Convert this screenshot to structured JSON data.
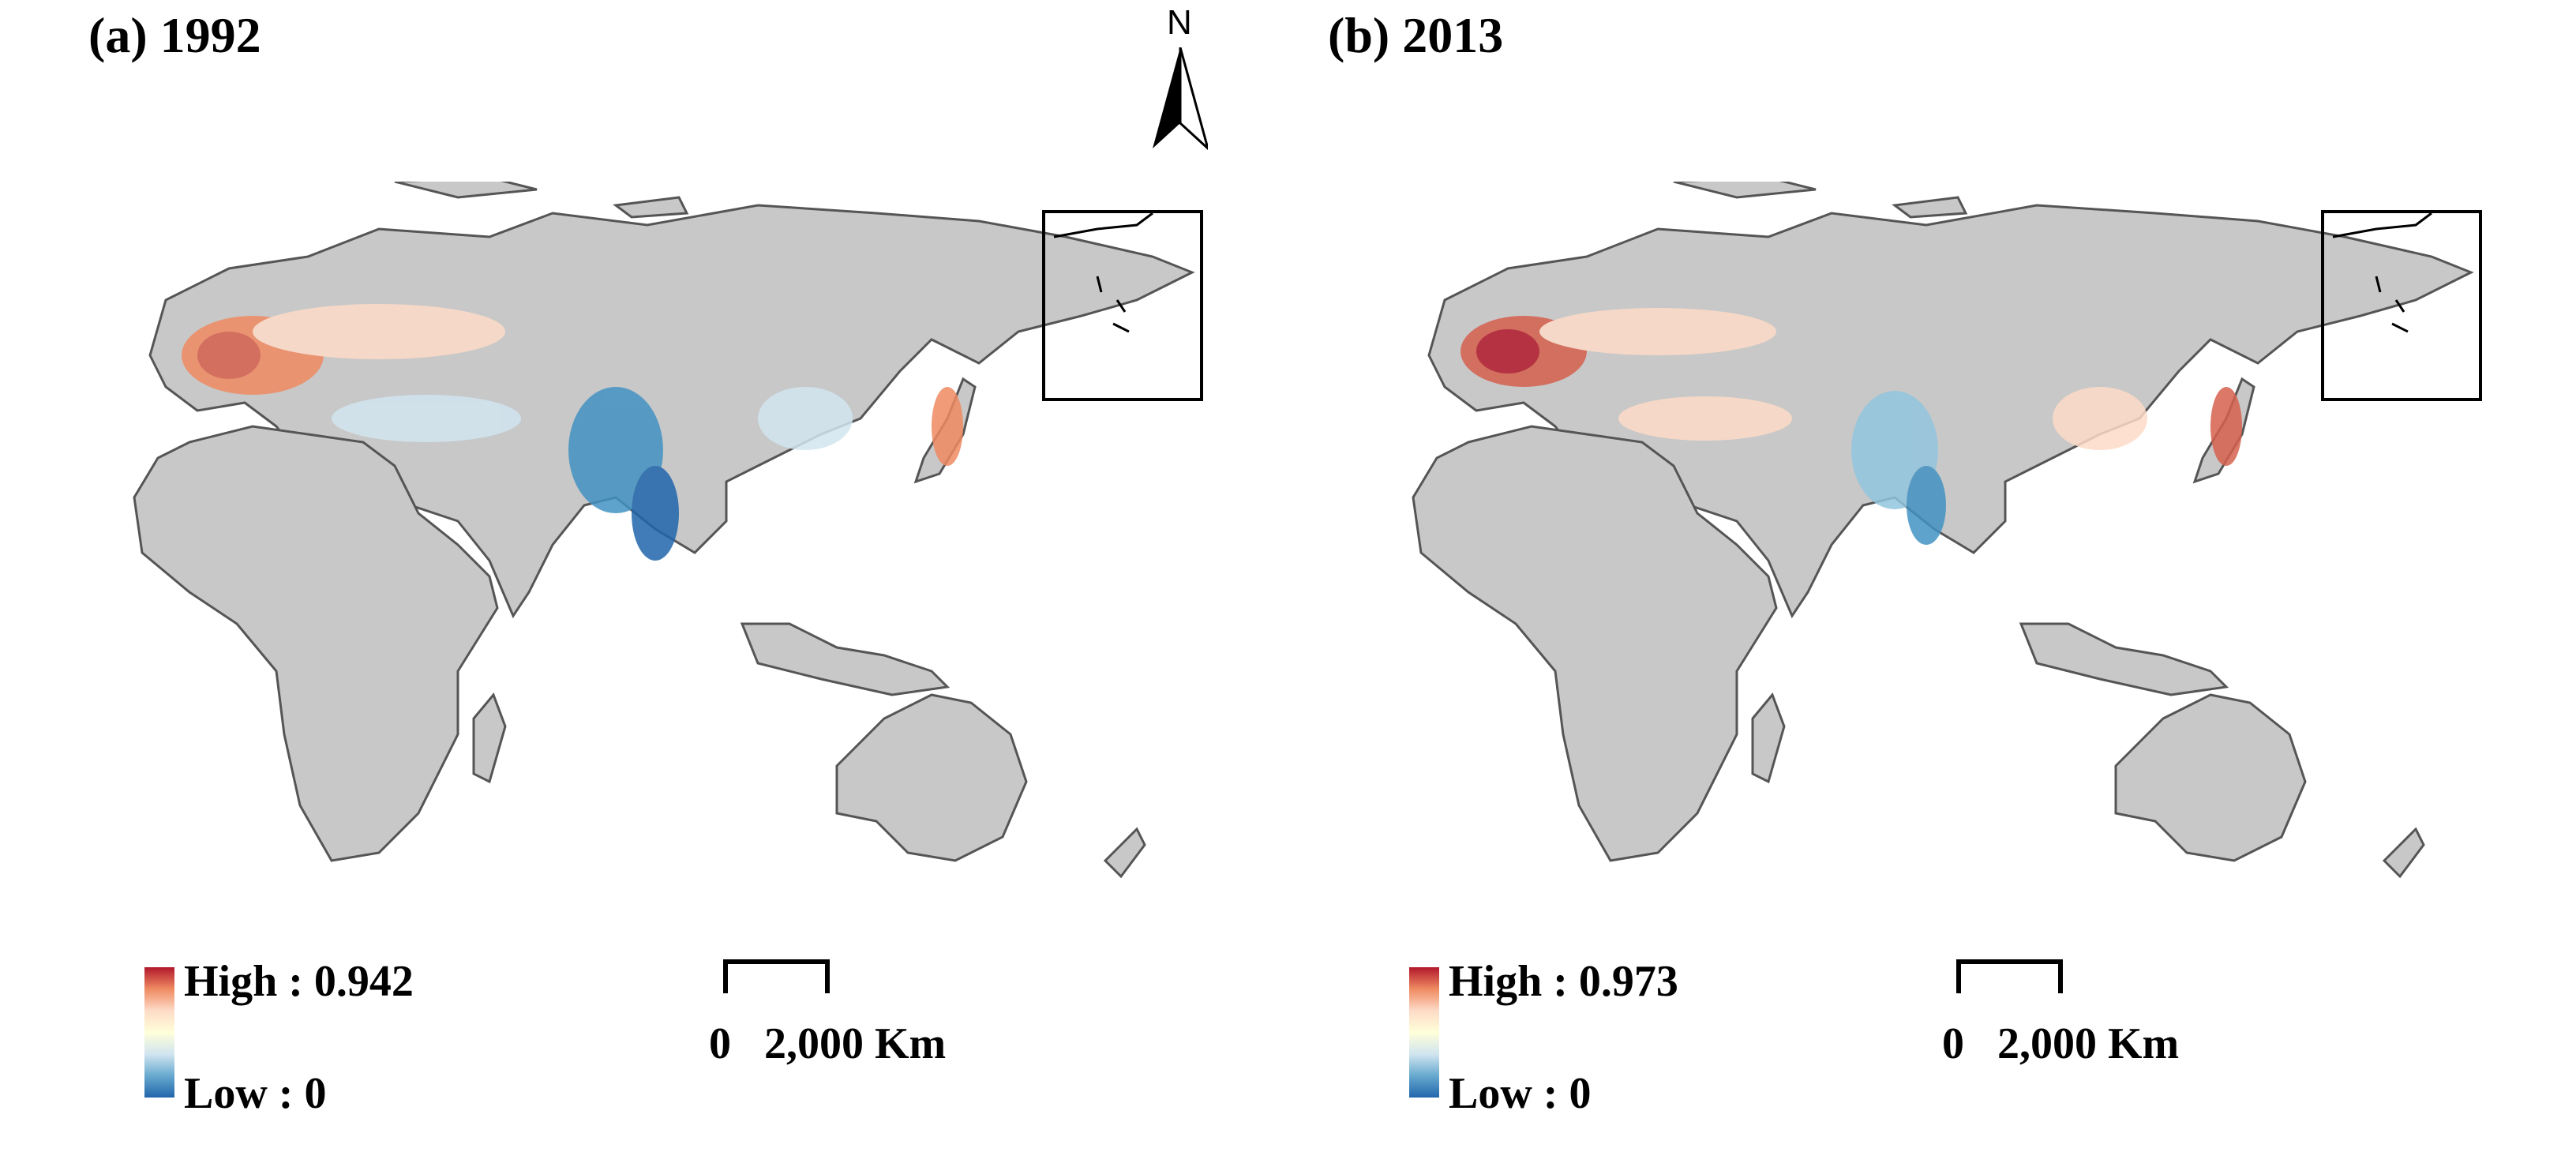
{
  "panels": [
    {
      "title": "(a) 1992",
      "legend_high": "High : 0.942",
      "legend_low": "Low : 0"
    },
    {
      "title": "(b) 2013",
      "legend_high": "High : 0.973",
      "legend_low": "Low : 0"
    }
  ],
  "north_arrow": {
    "label": "N",
    "icon": "north-arrow-icon"
  },
  "scale_bar": {
    "start": "0",
    "end": "2,000",
    "unit": "Km"
  },
  "colors": {
    "land": "#c8c8c8",
    "border": "#555555",
    "high": "#b2182b",
    "mid": "#ffffd9",
    "low": "#2166ac"
  }
}
